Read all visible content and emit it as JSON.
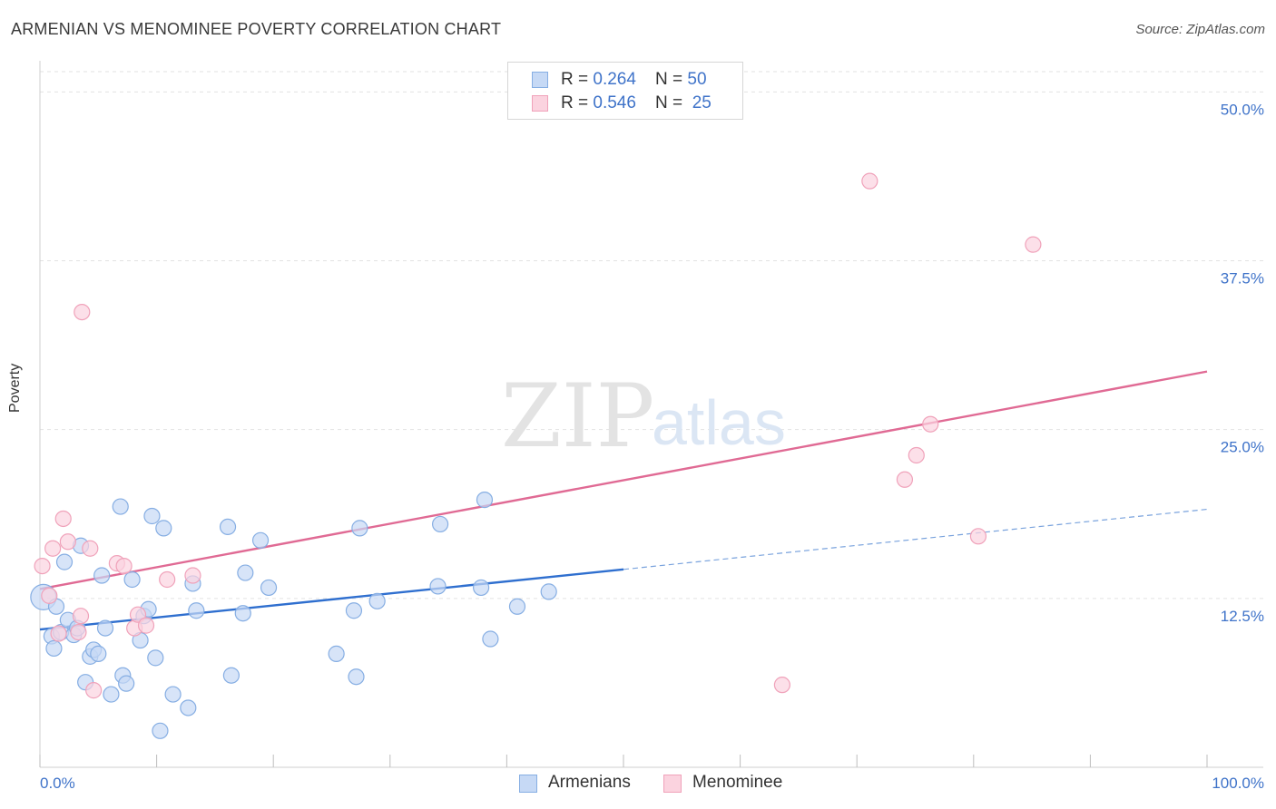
{
  "header": {
    "title": "ARMENIAN VS MENOMINEE POVERTY CORRELATION CHART",
    "source": "Source: ZipAtlas.com"
  },
  "watermark": {
    "part1": "ZIP",
    "part2": "atlas"
  },
  "legend": {
    "rows": [
      {
        "r_label": "R = ",
        "r_value": "0.264",
        "n_label": "N = ",
        "n_value": "50"
      },
      {
        "r_label": "R = ",
        "r_value": "0.546",
        "n_label": "N = ",
        "n_value": "25"
      }
    ]
  },
  "colors": {
    "armenians_fill": "#c6d9f5",
    "armenians_stroke": "#86aee3",
    "armenians_line": "#2f6fcf",
    "menominee_fill": "#fbd3df",
    "menominee_stroke": "#f0a2ba",
    "menominee_line": "#e06a94",
    "tick_text": "#3f73c9",
    "grid": "#e2e2e2"
  },
  "chart_data": {
    "type": "scatter",
    "xlabel": "",
    "ylabel": "Poverty",
    "xlim": [
      0,
      100
    ],
    "ylim": [
      0,
      51.5
    ],
    "x_tick_labels": [
      "0.0%",
      "100.0%"
    ],
    "y_ticks": [
      12.5,
      25.0,
      37.5,
      50.0
    ],
    "y_tick_labels": [
      "12.5%",
      "25.0%",
      "37.5%",
      "50.0%"
    ],
    "grid": "horizontal dashed",
    "legend_position": "top-center",
    "series": [
      {
        "name": "Armenians",
        "r": 0.264,
        "n": 50,
        "trend": {
          "x_solid_end": 50,
          "x_dash_end": 100,
          "y_at_0": 10.2,
          "y_at_100": 19.1
        },
        "points": [
          [
            0.3,
            12.6
          ],
          [
            1.0,
            9.7
          ],
          [
            1.2,
            8.8
          ],
          [
            1.4,
            11.9
          ],
          [
            1.8,
            10.0
          ],
          [
            2.1,
            15.2
          ],
          [
            2.4,
            10.9
          ],
          [
            2.9,
            9.8
          ],
          [
            3.2,
            10.3
          ],
          [
            3.5,
            16.4
          ],
          [
            3.9,
            6.3
          ],
          [
            4.3,
            8.2
          ],
          [
            4.6,
            8.7
          ],
          [
            5.0,
            8.4
          ],
          [
            5.3,
            14.2
          ],
          [
            5.6,
            10.3
          ],
          [
            6.1,
            5.4
          ],
          [
            6.9,
            19.3
          ],
          [
            7.1,
            6.8
          ],
          [
            7.4,
            6.2
          ],
          [
            7.9,
            13.9
          ],
          [
            8.6,
            9.4
          ],
          [
            8.9,
            11.2
          ],
          [
            9.3,
            11.7
          ],
          [
            9.6,
            18.6
          ],
          [
            9.9,
            8.1
          ],
          [
            10.3,
            2.7
          ],
          [
            10.6,
            17.7
          ],
          [
            11.4,
            5.4
          ],
          [
            12.7,
            4.4
          ],
          [
            13.1,
            13.6
          ],
          [
            13.4,
            11.6
          ],
          [
            16.4,
            6.8
          ],
          [
            16.1,
            17.8
          ],
          [
            17.4,
            11.4
          ],
          [
            17.6,
            14.4
          ],
          [
            18.9,
            16.8
          ],
          [
            19.6,
            13.3
          ],
          [
            25.4,
            8.4
          ],
          [
            26.9,
            11.6
          ],
          [
            27.1,
            6.7
          ],
          [
            27.4,
            17.7
          ],
          [
            28.9,
            12.3
          ],
          [
            34.1,
            13.4
          ],
          [
            34.3,
            18.0
          ],
          [
            37.8,
            13.3
          ],
          [
            38.1,
            19.8
          ],
          [
            38.6,
            9.5
          ],
          [
            40.9,
            11.9
          ],
          [
            43.6,
            13.0
          ]
        ]
      },
      {
        "name": "Menominee",
        "r": 0.546,
        "n": 25,
        "trend": {
          "x_solid_end": 100,
          "y_at_0": 13.2,
          "y_at_100": 29.3
        },
        "points": [
          [
            0.2,
            14.9
          ],
          [
            0.8,
            12.7
          ],
          [
            1.1,
            16.2
          ],
          [
            1.6,
            9.9
          ],
          [
            2.0,
            18.4
          ],
          [
            2.4,
            16.7
          ],
          [
            3.3,
            10.0
          ],
          [
            3.5,
            11.2
          ],
          [
            3.6,
            33.7
          ],
          [
            4.3,
            16.2
          ],
          [
            4.6,
            5.7
          ],
          [
            6.6,
            15.1
          ],
          [
            7.2,
            14.9
          ],
          [
            8.1,
            10.3
          ],
          [
            8.4,
            11.3
          ],
          [
            9.1,
            10.5
          ],
          [
            10.9,
            13.9
          ],
          [
            13.1,
            14.2
          ],
          [
            63.6,
            6.1
          ],
          [
            71.1,
            43.4
          ],
          [
            74.1,
            21.3
          ],
          [
            75.1,
            23.1
          ],
          [
            76.3,
            25.4
          ],
          [
            80.4,
            17.1
          ],
          [
            85.1,
            38.7
          ]
        ]
      }
    ]
  }
}
